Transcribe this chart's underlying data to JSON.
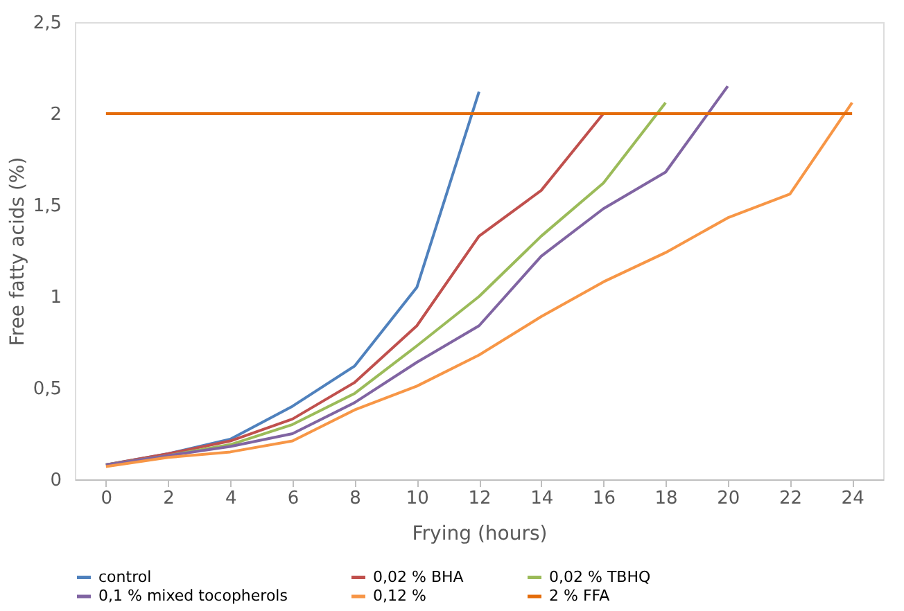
{
  "chart_data": {
    "type": "line",
    "xlabel": "Frying (hours)",
    "ylabel": "Free fatty acids (%)",
    "xlim": [
      -1,
      25
    ],
    "xticks": [
      0,
      2,
      4,
      6,
      8,
      10,
      12,
      14,
      16,
      18,
      20,
      22,
      24
    ],
    "ylim": [
      0,
      2.5
    ],
    "yticks": [
      {
        "value": 0,
        "label": "0"
      },
      {
        "value": 0.5,
        "label": "0,5"
      },
      {
        "value": 1,
        "label": "1"
      },
      {
        "value": 1.5,
        "label": "1,5"
      },
      {
        "value": 2,
        "label": "2"
      },
      {
        "value": 2.5,
        "label": "2,5"
      }
    ],
    "grid": false,
    "legend": "bottom",
    "marker": "none",
    "line_style": "solid",
    "series": [
      {
        "name": "control",
        "color": "#4f81bd",
        "x": [
          0,
          2,
          4,
          6,
          8,
          10,
          12
        ],
        "values": [
          0.08,
          0.14,
          0.22,
          0.4,
          0.62,
          1.05,
          2.12
        ]
      },
      {
        "name": "0,02 % BHA",
        "color": "#c0504d",
        "x": [
          0,
          2,
          4,
          6,
          8,
          10,
          12,
          14,
          16
        ],
        "values": [
          0.08,
          0.14,
          0.21,
          0.33,
          0.53,
          0.84,
          1.33,
          1.58,
          2.0
        ]
      },
      {
        "name": "0,02 % TBHQ",
        "color": "#9bbb59",
        "x": [
          0,
          2,
          4,
          6,
          8,
          10,
          12,
          14,
          16,
          18
        ],
        "values": [
          0.08,
          0.13,
          0.19,
          0.3,
          0.47,
          0.73,
          1.0,
          1.33,
          1.62,
          2.06
        ]
      },
      {
        "name": "0,1 % mixed tocopherols",
        "color": "#8064a2",
        "x": [
          0,
          2,
          4,
          6,
          8,
          10,
          12,
          14,
          16,
          18,
          20
        ],
        "values": [
          0.08,
          0.13,
          0.18,
          0.25,
          0.42,
          0.64,
          0.84,
          1.22,
          1.48,
          1.68,
          2.15
        ]
      },
      {
        "name": "0,12 %",
        "color": "#f79646",
        "x": [
          0,
          2,
          4,
          6,
          8,
          10,
          12,
          14,
          16,
          18,
          20,
          22,
          24
        ],
        "values": [
          0.07,
          0.12,
          0.15,
          0.21,
          0.38,
          0.51,
          0.68,
          0.89,
          1.08,
          1.24,
          1.43,
          1.56,
          2.06
        ]
      },
      {
        "name": "2 % FFA",
        "color": "#e46c0a",
        "x": [
          0,
          24
        ],
        "values": [
          2.0,
          2.0
        ]
      }
    ]
  }
}
